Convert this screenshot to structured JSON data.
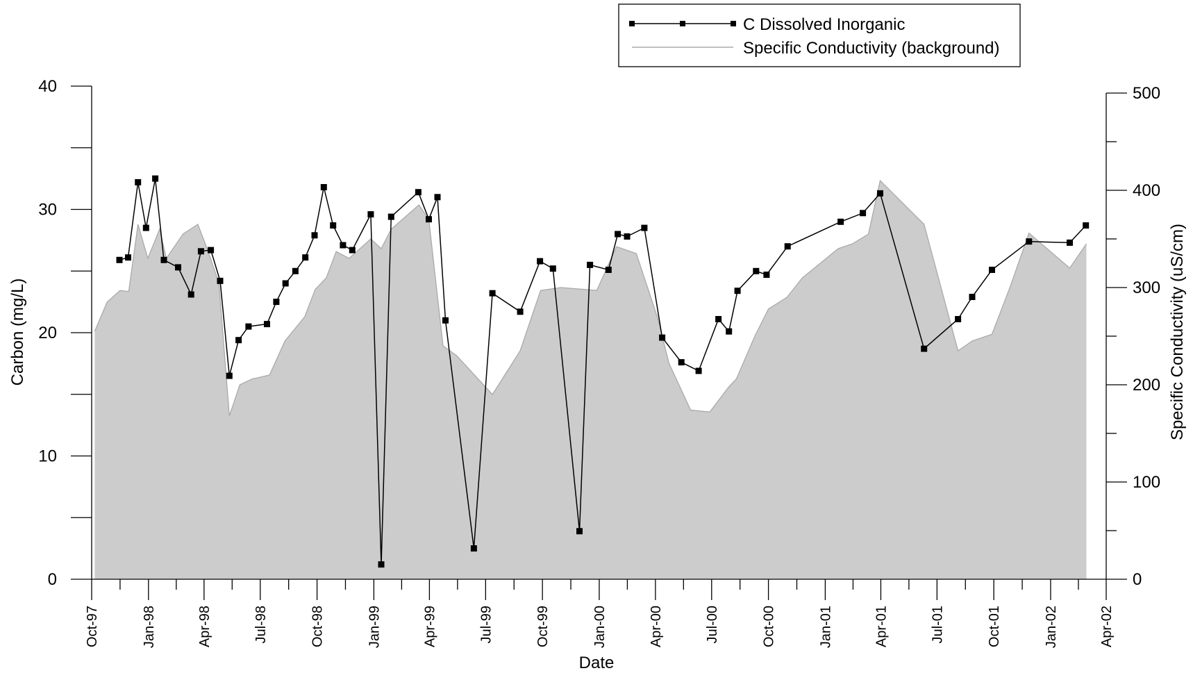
{
  "chart_data": {
    "type": "line",
    "xlabel": "Date",
    "ylabel": "Carbon (mg/L)",
    "y2label": "Specific Conductivity (uS/cm)",
    "x_ticks": [
      "Oct-97",
      "Jan-98",
      "Apr-98",
      "Jul-98",
      "Oct-98",
      "Jan-99",
      "Apr-99",
      "Jul-99",
      "Oct-99",
      "Jan-00",
      "Apr-00",
      "Jul-00",
      "Oct-00",
      "Jan-01",
      "Apr-01",
      "Jul-01",
      "Oct-01",
      "Jan-02",
      "Apr-02"
    ],
    "xlim": [
      "1997-10-01",
      "2002-04-01"
    ],
    "ylim": [
      0,
      40
    ],
    "y_ticks": [
      "0",
      "10",
      "20",
      "30",
      "40"
    ],
    "y2lim": [
      0,
      500
    ],
    "y2_ticks": [
      "0",
      "100",
      "200",
      "300",
      "400",
      "500"
    ],
    "grid": false,
    "legend": {
      "position": "top-right",
      "entries": [
        "C Dissolved Inorganic",
        "Specific Conductivity (background)"
      ]
    },
    "series": [
      {
        "name": "C Dissolved Inorganic",
        "axis": "left",
        "style": "line-with-square-markers",
        "color": "#000000",
        "x": [
          "1997-11-15",
          "1997-11-29",
          "1997-12-15",
          "1997-12-28",
          "1998-01-12",
          "1998-01-26",
          "1998-02-18",
          "1998-03-11",
          "1998-03-27",
          "1998-04-12",
          "1998-04-27",
          "1998-05-12",
          "1998-05-27",
          "1998-06-12",
          "1998-07-12",
          "1998-07-27",
          "1998-08-11",
          "1998-08-27",
          "1998-09-12",
          "1998-09-27",
          "1998-10-12",
          "1998-10-27",
          "1998-11-12",
          "1998-11-27",
          "1998-12-27",
          "1999-01-13",
          "1999-01-29",
          "1999-03-14",
          "1999-03-31",
          "1999-04-14",
          "1999-04-27",
          "1999-06-12",
          "1999-07-12",
          "1999-08-26",
          "1999-09-27",
          "1999-10-18",
          "1999-11-30",
          "1999-12-17",
          "2000-01-16",
          "2000-01-31",
          "2000-02-15",
          "2000-03-14",
          "2000-04-12",
          "2000-05-13",
          "2000-06-10",
          "2000-07-12",
          "2000-07-29",
          "2000-08-12",
          "2000-09-11",
          "2000-09-28",
          "2000-11-01",
          "2001-01-26",
          "2001-03-03",
          "2001-03-31",
          "2001-06-10",
          "2001-08-04",
          "2001-08-27",
          "2001-09-28",
          "2001-11-27",
          "2002-02-01",
          "2002-02-27"
        ],
        "y": [
          25.9,
          26.1,
          32.2,
          28.5,
          32.5,
          25.9,
          25.3,
          23.1,
          26.6,
          26.7,
          24.2,
          16.5,
          19.4,
          20.5,
          20.7,
          22.5,
          24.0,
          25.0,
          26.1,
          27.9,
          31.8,
          28.7,
          27.1,
          26.7,
          29.6,
          1.2,
          29.4,
          31.4,
          29.2,
          31.0,
          21.0,
          2.5,
          23.2,
          21.7,
          25.8,
          25.2,
          3.9,
          25.5,
          25.1,
          28.0,
          27.8,
          28.5,
          19.6,
          17.6,
          16.9,
          21.1,
          20.1,
          23.4,
          25.0,
          24.7,
          27.0,
          29.0,
          29.7,
          31.3,
          18.7,
          21.1,
          22.9,
          25.1,
          27.4,
          27.3,
          28.7
        ]
      },
      {
        "name": "Specific Conductivity (background)",
        "axis": "right",
        "style": "filled-area",
        "color": "#cccccc",
        "line_color": "#aaaaaa",
        "x": [
          "1997-10-06",
          "1997-10-26",
          "1997-11-16",
          "1997-11-30",
          "1997-12-15",
          "1997-12-31",
          "1998-01-19",
          "1998-01-30",
          "1998-02-26",
          "1998-03-22",
          "1998-04-06",
          "1998-04-25",
          "1998-05-12",
          "1998-05-29",
          "1998-06-18",
          "1998-07-16",
          "1998-08-10",
          "1998-09-11",
          "1998-09-28",
          "1998-10-16",
          "1998-11-01",
          "1998-11-22",
          "1998-12-27",
          "1999-01-13",
          "1999-01-29",
          "1999-03-15",
          "1999-03-31",
          "1999-04-23",
          "1999-05-15",
          "1999-07-12",
          "1999-08-26",
          "1999-09-28",
          "1999-10-31",
          "1999-12-28",
          "2000-01-29",
          "2000-03-01",
          "2000-04-04",
          "2000-04-23",
          "2000-05-28",
          "2000-06-28",
          "2000-07-29",
          "2000-08-10",
          "2000-09-09",
          "2000-10-01",
          "2000-10-31",
          "2000-11-25",
          "2001-01-22",
          "2001-02-14",
          "2001-03-12",
          "2001-03-31",
          "2001-06-10",
          "2001-08-04",
          "2001-08-27",
          "2001-09-28",
          "2001-10-27",
          "2001-11-27",
          "2002-02-01",
          "2002-02-28"
        ],
        "y": [
          255,
          285,
          297,
          296,
          365,
          330,
          360,
          330,
          355,
          365,
          340,
          305,
          168,
          200,
          206,
          210,
          245,
          270,
          298,
          310,
          337,
          330,
          350,
          340,
          360,
          385,
          370,
          240,
          230,
          190,
          235,
          297,
          300,
          297,
          342,
          335,
          270,
          222,
          174,
          172,
          198,
          206,
          250,
          278,
          290,
          310,
          340,
          345,
          355,
          410,
          365,
          235,
          245,
          252,
          300,
          356,
          320,
          345
        ]
      }
    ]
  }
}
